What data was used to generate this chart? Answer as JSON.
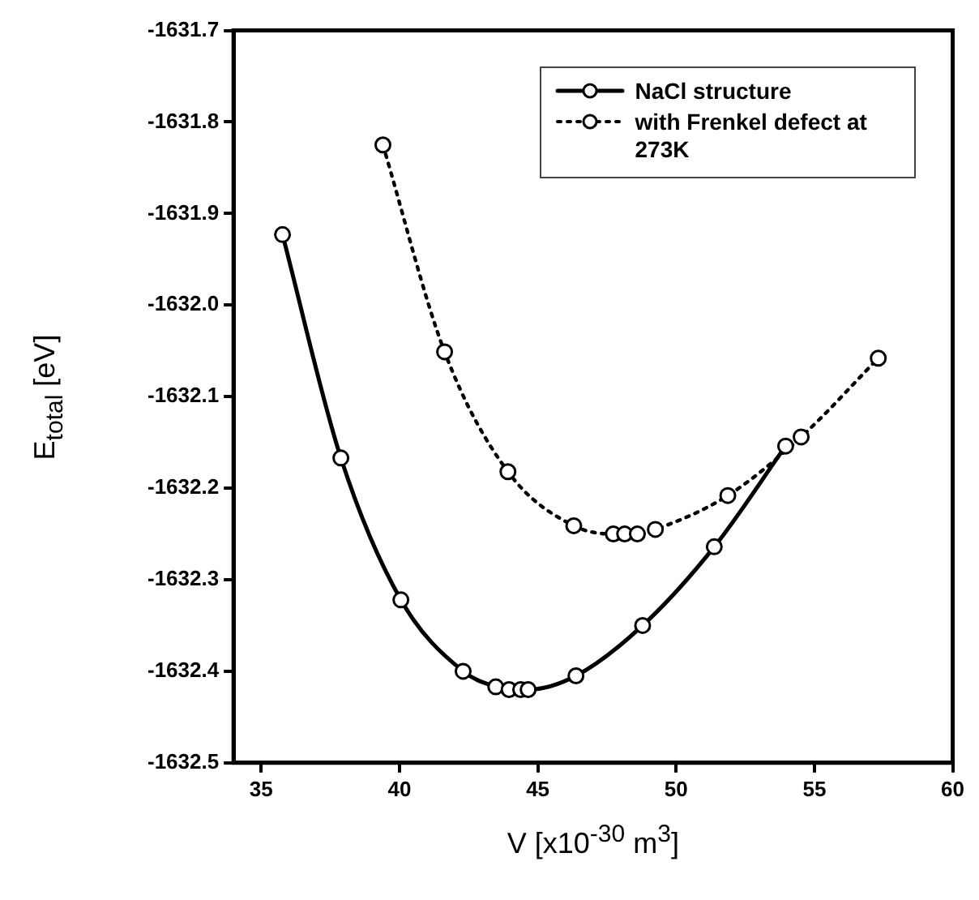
{
  "chart_data": {
    "type": "line",
    "xlabel": "V [x10$^{-30}$ m$^{3}$]",
    "ylabel": "E$_{total}$ [eV]",
    "xlim": [
      34,
      60
    ],
    "xticks": [
      35,
      40,
      45,
      50,
      55,
      60
    ],
    "ylim": [
      -1632.5,
      -1631.7
    ],
    "yticks": [
      {
        "value": -1632.5,
        "label": "-1632.5"
      },
      {
        "value": -1632.4,
        "label": "-1632.4"
      },
      {
        "value": -1632.3,
        "label": "-1632.3"
      },
      {
        "value": -1632.2,
        "label": "-1632.2"
      },
      {
        "value": -1632.1,
        "label": "-1632.1"
      },
      {
        "value": -1632,
        "label": "-1632.0"
      },
      {
        "value": -1631.9,
        "label": "-1631.9"
      },
      {
        "value": -1631.8,
        "label": "-1631.8"
      },
      {
        "value": -1631.7,
        "label": "-1631.7"
      }
    ],
    "grid": false,
    "legend": "top right",
    "marker": "circle",
    "series": [
      {
        "name": "NaCl structure",
        "color": "#000000",
        "line_style": "solid",
        "x": [
          35.77,
          37.88,
          40.05,
          42.3,
          43.48,
          43.96,
          44.38,
          44.65,
          46.38,
          48.79,
          51.38,
          53.96
        ],
        "values": [
          -1631.923,
          -1632.167,
          -1632.322,
          -1632.4,
          -1632.417,
          -1632.42,
          -1632.42,
          -1632.42,
          -1632.405,
          -1632.35,
          -1632.264,
          -1632.154
        ]
      },
      {
        "name": "with Frenkel defect at 273K",
        "color": "#000000",
        "line_style": "dotted",
        "x": [
          39.4,
          41.63,
          43.92,
          46.3,
          47.73,
          48.14,
          48.6,
          49.25,
          51.87,
          54.52,
          57.31
        ],
        "values": [
          -1631.825,
          -1632.051,
          -1632.182,
          -1632.241,
          -1632.25,
          -1632.25,
          -1632.25,
          -1632.245,
          -1632.208,
          -1632.144,
          -1632.058
        ]
      }
    ]
  }
}
